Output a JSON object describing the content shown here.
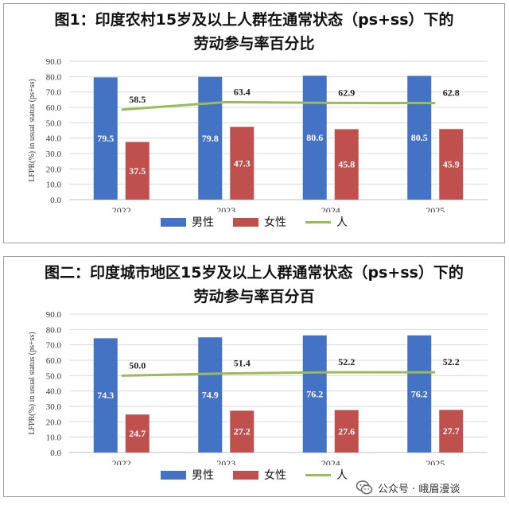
{
  "colors": {
    "male": "#4472c4",
    "female": "#c0504d",
    "all": "#9bbb59"
  },
  "legend": {
    "male": "男性",
    "female": "女性",
    "all": "人"
  },
  "watermark": {
    "text": "公众号 · 峨眉漫谈",
    "icon": "wechat-icon"
  },
  "charts": [
    {
      "title_line1": "图1：印度农村15岁及以上人群在通常状态（ps+ss）下的",
      "title_line2": "劳动参与率百分比"
    },
    {
      "title_line1": "图二：印度城市地区15岁及以上人群通常状态（ps+ss）下的",
      "title_line2": "劳动参与率百分百"
    }
  ],
  "chart_data": [
    {
      "type": "bar",
      "title": "图1：印度农村15岁及以上人群在通常状态（ps+ss）下的劳动参与率百分比",
      "ylabel": "LFPR(%)  in usual status (ps+ss)",
      "ylim": [
        0,
        90
      ],
      "yticks": [
        "0.0",
        "10.0",
        "20.0",
        "30.0",
        "40.0",
        "50.0",
        "60.0",
        "70.0",
        "80.0",
        "90.0"
      ],
      "categories": [
        "2022",
        "2023",
        "2024",
        "2025"
      ],
      "series": [
        {
          "name": "男性",
          "type": "bar",
          "values": [
            79.5,
            79.8,
            80.6,
            80.5
          ],
          "labels": [
            "79.5",
            "79.8",
            "80.6",
            "80.5"
          ]
        },
        {
          "name": "女性",
          "type": "bar",
          "values": [
            37.5,
            47.3,
            45.8,
            45.9
          ],
          "labels": [
            "37.5",
            "47.3",
            "45.8",
            "45.9"
          ]
        },
        {
          "name": "人",
          "type": "line",
          "values": [
            58.5,
            63.4,
            62.9,
            62.8
          ],
          "labels": [
            "58.5",
            "63.4",
            "62.9",
            "62.8"
          ]
        }
      ],
      "grid": true,
      "legend_position": "bottom"
    },
    {
      "type": "bar",
      "title": "图二：印度城市地区15岁及以上人群通常状态（ps+ss）下的劳动参与率百分百",
      "ylabel": "LFPR(%)  in usual status (ps+ss)",
      "ylim": [
        0,
        90
      ],
      "yticks": [
        "0.0",
        "10.0",
        "20.0",
        "30.0",
        "40.0",
        "50.0",
        "60.0",
        "70.0",
        "80.0",
        "90.0"
      ],
      "categories": [
        "2022",
        "2023",
        "2024",
        "2025"
      ],
      "series": [
        {
          "name": "男性",
          "type": "bar",
          "values": [
            74.3,
            74.9,
            76.2,
            76.2
          ],
          "labels": [
            "74.3",
            "74.9",
            "76.2",
            "76.2"
          ]
        },
        {
          "name": "女性",
          "type": "bar",
          "values": [
            24.7,
            27.2,
            27.6,
            27.7
          ],
          "labels": [
            "24.7",
            "27.2",
            "27.6",
            "27.7"
          ]
        },
        {
          "name": "人",
          "type": "line",
          "values": [
            50.0,
            51.4,
            52.2,
            52.2
          ],
          "labels": [
            "50.0",
            "51.4",
            "52.2",
            "52.2"
          ]
        }
      ],
      "grid": true,
      "legend_position": "bottom"
    }
  ]
}
